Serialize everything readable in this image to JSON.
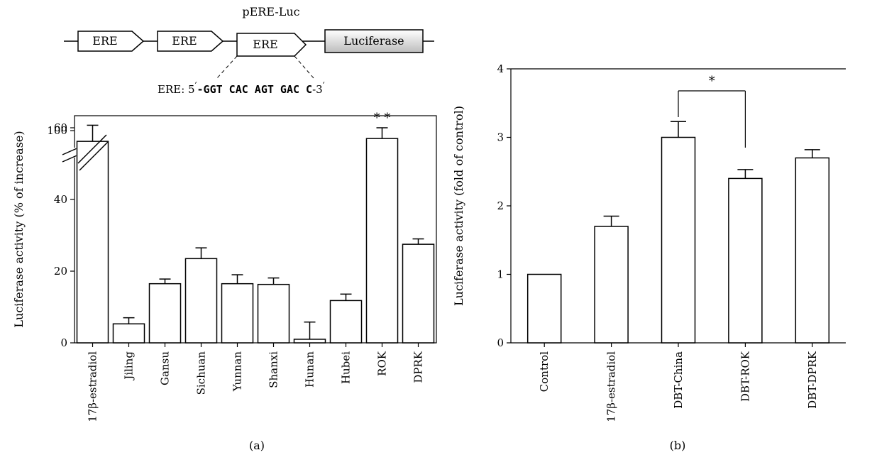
{
  "construct": {
    "title": "pERE-Luc",
    "elements": [
      "ERE",
      "ERE",
      "ERE"
    ],
    "reporter": "Luciferase",
    "sequence_prefix": "ERE: 5",
    "sequence_prime": "′",
    "sequence_bases": "-GGT CAC AGT GAC C",
    "sequence_suffix": "-3",
    "sequence_suffix_prime": "′"
  },
  "chart_data": [
    {
      "type": "bar",
      "panel_label": "(a)",
      "ylabel": "Luciferase activity (% of increase)",
      "categories": [
        "17β-estradiol",
        "Jiling",
        "Gansu",
        "Sichuan",
        "Yunnan",
        "Shanxi",
        "Hunan",
        "Hubei",
        "ROK",
        "DPRK"
      ],
      "values": [
        97,
        5.3,
        16.5,
        23.5,
        16.5,
        16.3,
        1,
        11.8,
        57,
        27.5
      ],
      "errors": [
        4.5,
        1.7,
        1.3,
        3,
        2.5,
        1.8,
        4.8,
        1.8,
        3,
        1.5
      ],
      "ylim": [
        0,
        105
      ],
      "yticks": [
        0,
        20,
        40,
        60,
        100
      ],
      "axis_break": "between 60 and 100",
      "annotations": [
        {
          "category": "ROK",
          "text": "* *"
        }
      ],
      "grid": false
    },
    {
      "type": "bar",
      "panel_label": "(b)",
      "ylabel": "Luciferase activity (fold of control)",
      "categories": [
        "Control",
        "17β-estradiol",
        "DBT-China",
        "DBT-ROK",
        "DBT-DPRK"
      ],
      "values": [
        1,
        1.7,
        3.0,
        2.4,
        2.7
      ],
      "errors": [
        0,
        0.15,
        0.23,
        0.13,
        0.12
      ],
      "ylim": [
        0,
        4
      ],
      "yticks": [
        0,
        1,
        2,
        3,
        4
      ],
      "significance": {
        "from": "DBT-China",
        "to": "DBT-ROK",
        "text": "*"
      },
      "grid": false
    }
  ]
}
